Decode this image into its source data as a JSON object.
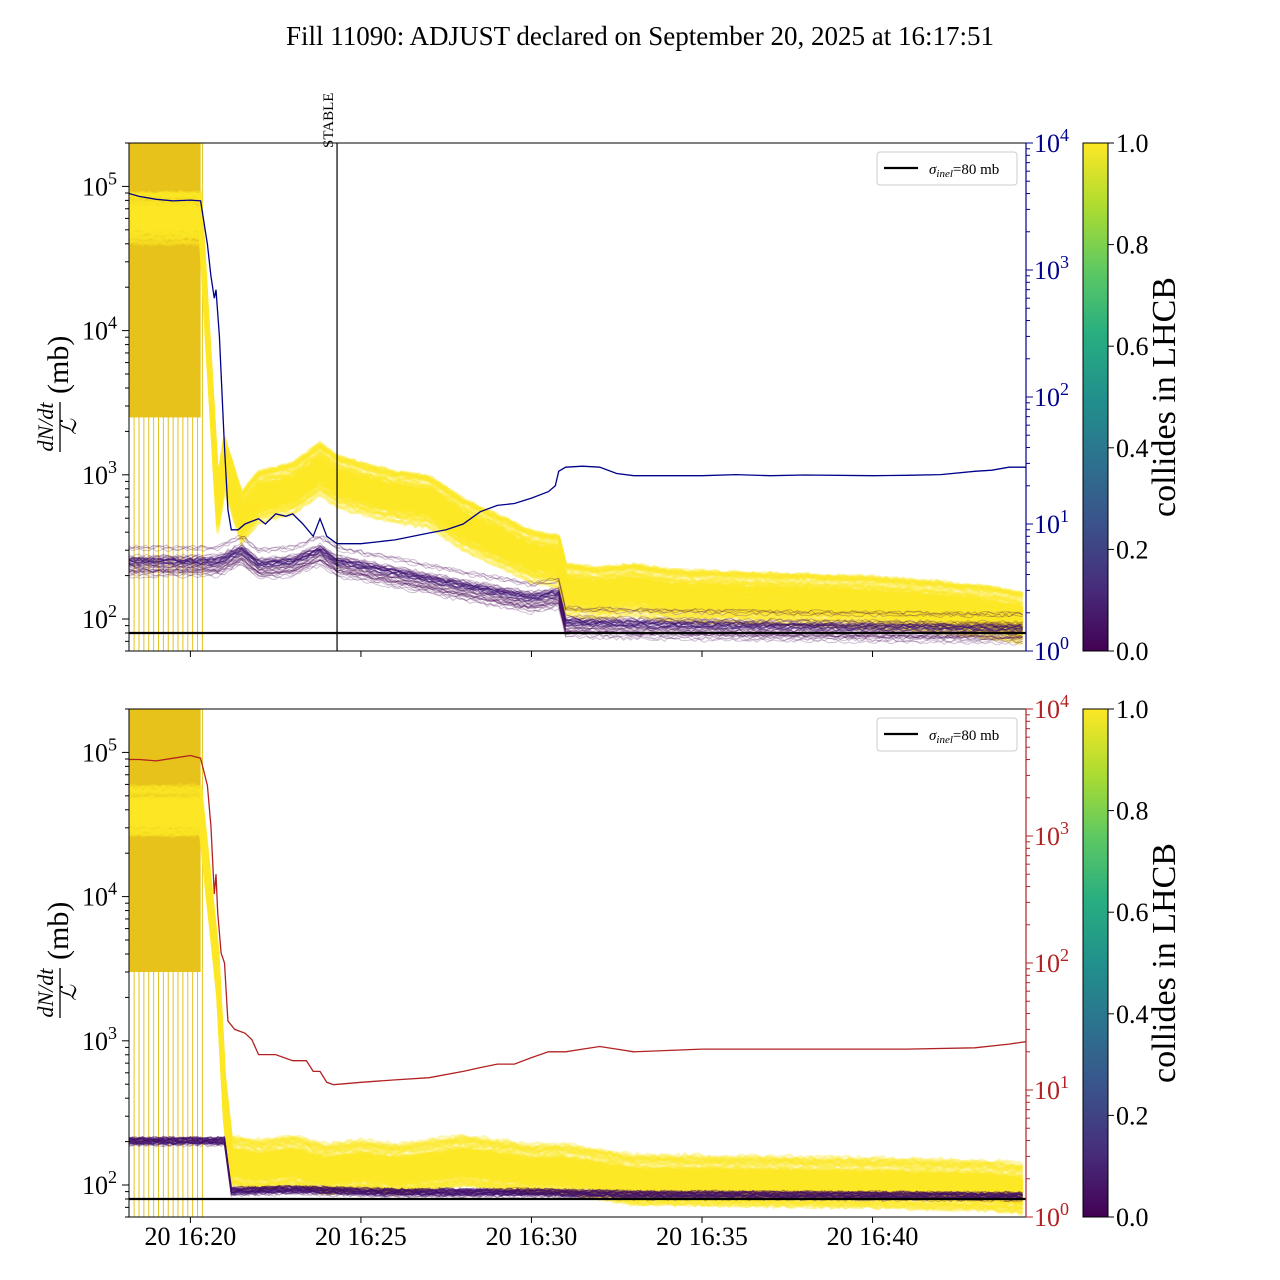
{
  "figure": {
    "title": "Fill 11090: ADJUST declared on September 20, 2025 at 16:17:51"
  },
  "colors": {
    "yellow": "#fde725",
    "purple": "#440154",
    "navy": "#00008b",
    "red": "#b22222",
    "black": "#000000"
  },
  "chart_data": [
    {
      "type": "line",
      "panel": "top",
      "ylabel_num": "dN/dt",
      "ylabel_den": "ℒ",
      "ylabel_unit": "(mb)",
      "yscale": "log",
      "ylim": [
        60,
        200000
      ],
      "y_ticks": [
        {
          "base": "10",
          "exp": "2",
          "value": 100
        },
        {
          "base": "10",
          "exp": "3",
          "value": 1000
        },
        {
          "base": "10",
          "exp": "4",
          "value": 10000
        },
        {
          "base": "10",
          "exp": "5",
          "value": 100000
        }
      ],
      "y2scale": "log",
      "y2lim": [
        1,
        10000
      ],
      "y2_color": "#00008b",
      "y2_ticks": [
        {
          "base": "10",
          "exp": "0",
          "value": 1
        },
        {
          "base": "10",
          "exp": "1",
          "value": 10
        },
        {
          "base": "10",
          "exp": "2",
          "value": 100
        },
        {
          "base": "10",
          "exp": "3",
          "value": 1000
        },
        {
          "base": "10",
          "exp": "4",
          "value": 10000
        }
      ],
      "x_range_minutes": [
        18.2,
        44.5
      ],
      "x_ticks": [
        {
          "label": "20 16:20",
          "minute": 20
        },
        {
          "label": "20 16:25",
          "minute": 25
        },
        {
          "label": "20 16:30",
          "minute": 30
        },
        {
          "label": "20 16:35",
          "minute": 35
        },
        {
          "label": "20 16:40",
          "minute": 40
        }
      ],
      "show_x_tick_labels": false,
      "vline": {
        "label": "STABLE",
        "minute": 24.3
      },
      "hline": {
        "label": "σinel=80 mb",
        "value": 80
      },
      "legend": {
        "prefix": "σ",
        "sub": "inel",
        "suffix": "=80 mb",
        "placement": "upper right"
      },
      "colorbar": {
        "label": "collides in LHCB",
        "min": 0.0,
        "max": 1.0,
        "ticks": [
          "0.0",
          "0.2",
          "0.4",
          "0.6",
          "0.8",
          "1.0"
        ],
        "cmap": "viridis"
      },
      "bands": {
        "colliding_mean": [
          [
            18.2,
            60000
          ],
          [
            20.0,
            60000
          ],
          [
            20.3,
            60000
          ],
          [
            20.8,
            600
          ],
          [
            21.0,
            1200
          ],
          [
            21.5,
            500
          ],
          [
            22.0,
            700
          ],
          [
            23.0,
            800
          ],
          [
            23.8,
            1100
          ],
          [
            24.3,
            900
          ],
          [
            25.0,
            800
          ],
          [
            26.0,
            700
          ],
          [
            27.0,
            650
          ],
          [
            28.0,
            450
          ],
          [
            29.0,
            350
          ],
          [
            30.0,
            270
          ],
          [
            30.8,
            250
          ],
          [
            31.0,
            160
          ],
          [
            32.0,
            150
          ],
          [
            33.0,
            160
          ],
          [
            34.0,
            145
          ],
          [
            36.0,
            140
          ],
          [
            38.0,
            135
          ],
          [
            40.0,
            130
          ],
          [
            42.0,
            120
          ],
          [
            43.5,
            110
          ],
          [
            44.5,
            100
          ]
        ],
        "noncolliding_mean": [
          [
            20.8,
            250
          ],
          [
            21.5,
            300
          ],
          [
            22.0,
            240
          ],
          [
            23.0,
            250
          ],
          [
            23.8,
            300
          ],
          [
            24.3,
            250
          ],
          [
            26.0,
            210
          ],
          [
            28.0,
            170
          ],
          [
            30.0,
            140
          ],
          [
            30.8,
            150
          ],
          [
            31.0,
            95
          ],
          [
            33.0,
            92
          ],
          [
            36.0,
            90
          ],
          [
            40.0,
            88
          ],
          [
            44.5,
            86
          ]
        ]
      },
      "y2_series": [
        [
          18.2,
          4000
        ],
        [
          18.5,
          3800
        ],
        [
          19.0,
          3600
        ],
        [
          19.5,
          3500
        ],
        [
          20.0,
          3550
        ],
        [
          20.3,
          3500
        ],
        [
          20.5,
          1600
        ],
        [
          20.6,
          900
        ],
        [
          20.7,
          600
        ],
        [
          20.75,
          700
        ],
        [
          20.85,
          300
        ],
        [
          21.0,
          40
        ],
        [
          21.1,
          13
        ],
        [
          21.2,
          9
        ],
        [
          21.4,
          9
        ],
        [
          21.6,
          10
        ],
        [
          22.0,
          11
        ],
        [
          22.2,
          10
        ],
        [
          22.5,
          12
        ],
        [
          22.8,
          11.5
        ],
        [
          23.0,
          12
        ],
        [
          23.3,
          10
        ],
        [
          23.6,
          8
        ],
        [
          23.8,
          11
        ],
        [
          24.0,
          8
        ],
        [
          24.3,
          7
        ],
        [
          25.0,
          7
        ],
        [
          26.0,
          7.5
        ],
        [
          27.0,
          8.5
        ],
        [
          27.5,
          9
        ],
        [
          28.0,
          10
        ],
        [
          28.5,
          12.5
        ],
        [
          29.0,
          14
        ],
        [
          29.5,
          14.5
        ],
        [
          30.0,
          16
        ],
        [
          30.5,
          18
        ],
        [
          30.7,
          20
        ],
        [
          30.8,
          26
        ],
        [
          31.0,
          28
        ],
        [
          31.5,
          28.5
        ],
        [
          32.0,
          28
        ],
        [
          32.5,
          25
        ],
        [
          33.0,
          24
        ],
        [
          35.0,
          24
        ],
        [
          36.0,
          24.5
        ],
        [
          37.0,
          24
        ],
        [
          38.0,
          24.3
        ],
        [
          40.0,
          24
        ],
        [
          41.0,
          24.2
        ],
        [
          42.0,
          24.5
        ],
        [
          43.0,
          26
        ],
        [
          43.5,
          26.5
        ],
        [
          44.0,
          28
        ],
        [
          44.5,
          28
        ]
      ],
      "y2_series_name": ""
    },
    {
      "type": "line",
      "panel": "bottom",
      "ylabel_num": "dN/dt",
      "ylabel_den": "ℒ",
      "ylabel_unit": "(mb)",
      "yscale": "log",
      "ylim": [
        60,
        200000
      ],
      "y_ticks": [
        {
          "base": "10",
          "exp": "2",
          "value": 100
        },
        {
          "base": "10",
          "exp": "3",
          "value": 1000
        },
        {
          "base": "10",
          "exp": "4",
          "value": 10000
        },
        {
          "base": "10",
          "exp": "5",
          "value": 100000
        }
      ],
      "y2scale": "log",
      "y2lim": [
        1,
        10000
      ],
      "y2_color": "#b22222",
      "y2_ticks": [
        {
          "base": "10",
          "exp": "0",
          "value": 1
        },
        {
          "base": "10",
          "exp": "1",
          "value": 10
        },
        {
          "base": "10",
          "exp": "2",
          "value": 100
        },
        {
          "base": "10",
          "exp": "3",
          "value": 1000
        },
        {
          "base": "10",
          "exp": "4",
          "value": 10000
        }
      ],
      "x_range_minutes": [
        18.2,
        44.5
      ],
      "x_ticks": [
        {
          "label": "20 16:20",
          "minute": 20
        },
        {
          "label": "20 16:25",
          "minute": 25
        },
        {
          "label": "20 16:30",
          "minute": 30
        },
        {
          "label": "20 16:35",
          "minute": 35
        },
        {
          "label": "20 16:40",
          "minute": 40
        }
      ],
      "show_x_tick_labels": true,
      "hline": {
        "label": "σinel=80 mb",
        "value": 80
      },
      "legend": {
        "prefix": "σ",
        "sub": "inel",
        "suffix": "=80 mb",
        "placement": "upper right"
      },
      "colorbar": {
        "label": "collides in LHCB",
        "min": 0.0,
        "max": 1.0,
        "ticks": [
          "0.0",
          "0.2",
          "0.4",
          "0.6",
          "0.8",
          "1.0"
        ],
        "cmap": "viridis"
      },
      "bands": {
        "colliding_mean": [
          [
            18.2,
            40000
          ],
          [
            20.0,
            40000
          ],
          [
            20.3,
            40000
          ],
          [
            20.8,
            3000
          ],
          [
            21.0,
            400
          ],
          [
            21.2,
            150
          ],
          [
            22.0,
            140
          ],
          [
            23.0,
            150
          ],
          [
            24.0,
            130
          ],
          [
            25.0,
            140
          ],
          [
            26.0,
            130
          ],
          [
            28.0,
            150
          ],
          [
            29.0,
            140
          ],
          [
            30.0,
            130
          ],
          [
            31.0,
            130
          ],
          [
            32.0,
            120
          ],
          [
            33.0,
            110
          ],
          [
            36.0,
            108
          ],
          [
            40.0,
            105
          ],
          [
            43.5,
            100
          ],
          [
            44.5,
            95
          ]
        ],
        "noncolliding_mean": [
          [
            21.0,
            200
          ],
          [
            21.2,
            90
          ],
          [
            23.0,
            92
          ],
          [
            26.0,
            88
          ],
          [
            30.0,
            88
          ],
          [
            33.0,
            85
          ],
          [
            40.0,
            84
          ],
          [
            44.5,
            83
          ]
        ]
      },
      "y2_series": [
        [
          18.2,
          4000
        ],
        [
          18.5,
          4000
        ],
        [
          19.0,
          3900
        ],
        [
          19.5,
          4100
        ],
        [
          20.0,
          4300
        ],
        [
          20.3,
          4100
        ],
        [
          20.5,
          2500
        ],
        [
          20.6,
          1200
        ],
        [
          20.7,
          350
        ],
        [
          20.75,
          500
        ],
        [
          20.8,
          250
        ],
        [
          20.9,
          120
        ],
        [
          21.0,
          100
        ],
        [
          21.1,
          35
        ],
        [
          21.3,
          30
        ],
        [
          21.6,
          28
        ],
        [
          21.8,
          25
        ],
        [
          22.0,
          19
        ],
        [
          22.5,
          19
        ],
        [
          23.0,
          17
        ],
        [
          23.4,
          17
        ],
        [
          23.6,
          14
        ],
        [
          23.8,
          14
        ],
        [
          24.0,
          11.5
        ],
        [
          24.2,
          11
        ],
        [
          25.0,
          11.5
        ],
        [
          26.0,
          12
        ],
        [
          27.0,
          12.5
        ],
        [
          28.0,
          14
        ],
        [
          28.5,
          15
        ],
        [
          29.0,
          16
        ],
        [
          29.5,
          16
        ],
        [
          30.0,
          18
        ],
        [
          30.5,
          20
        ],
        [
          31.0,
          20
        ],
        [
          31.5,
          21
        ],
        [
          32.0,
          22
        ],
        [
          32.5,
          21
        ],
        [
          33.0,
          20
        ],
        [
          35.0,
          21
        ],
        [
          37.0,
          21
        ],
        [
          39.0,
          21
        ],
        [
          41.0,
          21
        ],
        [
          43.0,
          21.5
        ],
        [
          44.0,
          23
        ],
        [
          44.5,
          24
        ]
      ],
      "y2_series_name": ""
    }
  ]
}
